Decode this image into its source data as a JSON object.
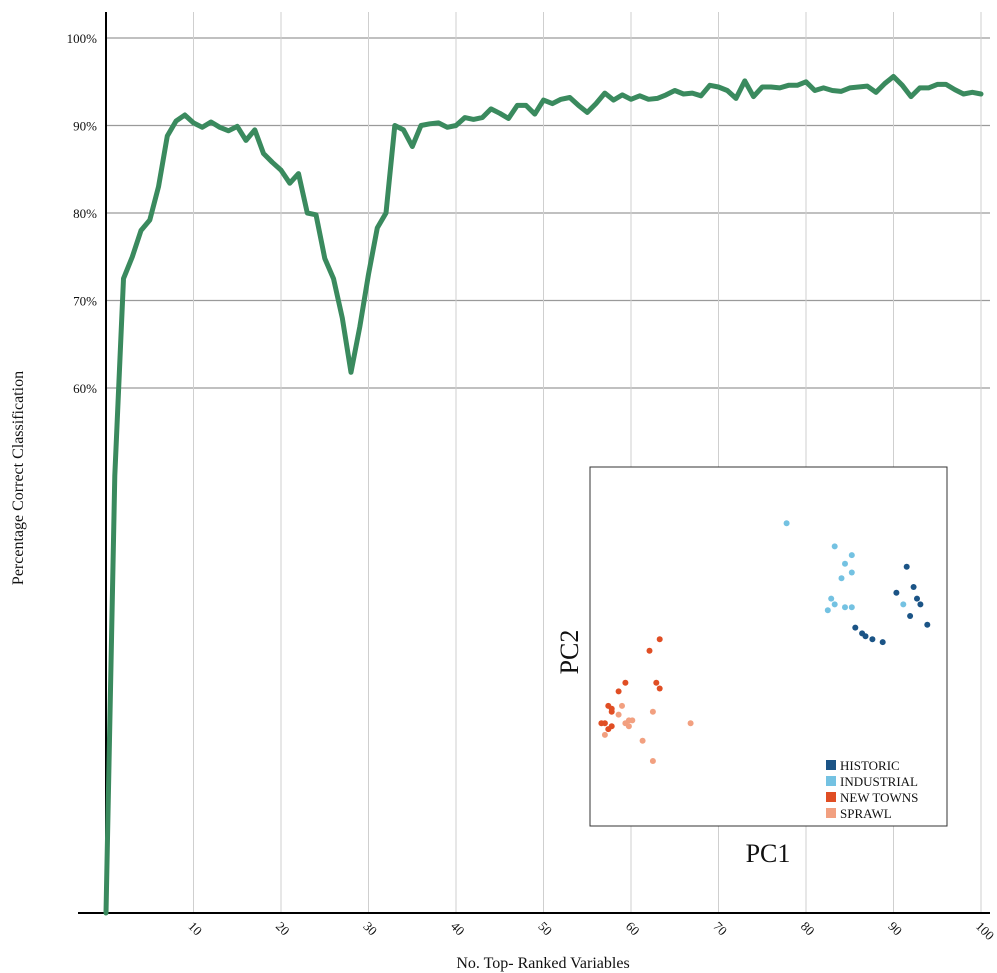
{
  "chart_data": [
    {
      "type": "line",
      "title": "",
      "xlabel": "No. Top- Ranked Variables",
      "ylabel": "Percentage Correct Classification",
      "xlim": [
        0,
        100
      ],
      "ylim": [
        0,
        100
      ],
      "x_ticks": [
        "10",
        "20",
        "30",
        "40",
        "50",
        "60",
        "70",
        "80",
        "90",
        "100"
      ],
      "y_ticks": [
        "60%",
        "70%",
        "80%",
        "90%",
        "100%"
      ],
      "grid": true,
      "line_color": "#3a8a5e",
      "series": [
        {
          "x": [
            0,
            1,
            2,
            3,
            4,
            5,
            6,
            7,
            8,
            9,
            10,
            11,
            12,
            13,
            14,
            15,
            16,
            17,
            18,
            19,
            20,
            21,
            22,
            23,
            24,
            25,
            26,
            27,
            28,
            29,
            30,
            31,
            32,
            33,
            34,
            35,
            36,
            37,
            38,
            39,
            40,
            41,
            42,
            43,
            44,
            45,
            46,
            47,
            48,
            49,
            50,
            51,
            52,
            53,
            54,
            55,
            56,
            57,
            58,
            59,
            60,
            61,
            62,
            63,
            64,
            65,
            66,
            67,
            68,
            69,
            70,
            71,
            72,
            73,
            74,
            75,
            76,
            77,
            78,
            79,
            80,
            81,
            82,
            83,
            84,
            85,
            86,
            87,
            88,
            89,
            90,
            91,
            92,
            93,
            94,
            95,
            96,
            97,
            98,
            99,
            100
          ],
          "y": [
            0,
            50,
            72.5,
            75,
            78,
            79.2,
            83,
            88.8,
            90.5,
            91.2,
            90.3,
            89.8,
            90.4,
            89.8,
            89.4,
            89.9,
            88.3,
            89.5,
            86.8,
            85.8,
            84.9,
            83.4,
            84.5,
            80,
            79.8,
            74.8,
            72.5,
            68,
            61.8,
            67,
            73,
            78.3,
            80,
            90,
            89.5,
            87.6,
            90,
            90.2,
            90.3,
            89.8,
            90,
            90.9,
            90.7,
            90.9,
            91.9,
            91.4,
            90.8,
            92.3,
            92.3,
            91.3,
            92.9,
            92.5,
            93,
            93.2,
            92.3,
            91.5,
            92.5,
            93.7,
            92.9,
            93.5,
            93,
            93.4,
            93,
            93.1,
            93.5,
            94,
            93.6,
            93.7,
            93.4,
            94.6,
            94.4,
            94,
            93.1,
            95.1,
            93.3,
            94.4,
            94.4,
            94.3,
            94.6,
            94.6,
            95,
            94,
            94.3,
            94,
            93.9,
            94.3,
            94.4,
            94.5,
            93.8,
            94.8,
            95.6,
            94.6,
            93.3,
            94.3,
            94.3,
            94.7,
            94.7,
            94.1,
            93.6,
            93.8,
            93.6
          ]
        }
      ]
    },
    {
      "type": "scatter",
      "title": "",
      "xlabel": "PC1",
      "ylabel": "PC2",
      "legend_position": "bottom-right",
      "xlim": [
        0,
        100
      ],
      "ylim": [
        0,
        100
      ],
      "series": [
        {
          "name": "HISTORIC",
          "color": "#1b5486",
          "points": [
            [
              90,
              77
            ],
            [
              87,
              68
            ],
            [
              92,
              70
            ],
            [
              93,
              66
            ],
            [
              94,
              64
            ],
            [
              91,
              60
            ],
            [
              96,
              57
            ],
            [
              75,
              56
            ],
            [
              77,
              54
            ],
            [
              78,
              53
            ],
            [
              80,
              52
            ],
            [
              83,
              51
            ]
          ]
        },
        {
          "name": "INDUSTRIAL",
          "color": "#74c2e2",
          "points": [
            [
              55,
              92
            ],
            [
              69,
              84
            ],
            [
              74,
              81
            ],
            [
              72,
              78
            ],
            [
              74,
              75
            ],
            [
              71,
              73
            ],
            [
              89,
              64
            ],
            [
              68,
              66
            ],
            [
              69,
              64
            ],
            [
              72,
              63
            ],
            [
              74,
              63
            ],
            [
              67,
              62
            ]
          ]
        },
        {
          "name": "NEW TOWNS",
          "color": "#e04e24",
          "points": [
            [
              18,
              52
            ],
            [
              15,
              48
            ],
            [
              17,
              37
            ],
            [
              8,
              37
            ],
            [
              18,
              35
            ],
            [
              6,
              34
            ],
            [
              3,
              29
            ],
            [
              4,
              28
            ],
            [
              4,
              27
            ],
            [
              2,
              23
            ],
            [
              4,
              22
            ],
            [
              1,
              23
            ],
            [
              3,
              21
            ]
          ]
        },
        {
          "name": "SPRAWL",
          "color": "#f2a080",
          "points": [
            [
              7,
              29
            ],
            [
              16,
              27
            ],
            [
              6,
              26
            ],
            [
              9,
              24
            ],
            [
              10,
              24
            ],
            [
              8,
              23
            ],
            [
              9,
              22
            ],
            [
              27,
              23
            ],
            [
              2,
              19
            ],
            [
              13,
              17
            ],
            [
              16,
              10
            ]
          ]
        }
      ]
    }
  ]
}
